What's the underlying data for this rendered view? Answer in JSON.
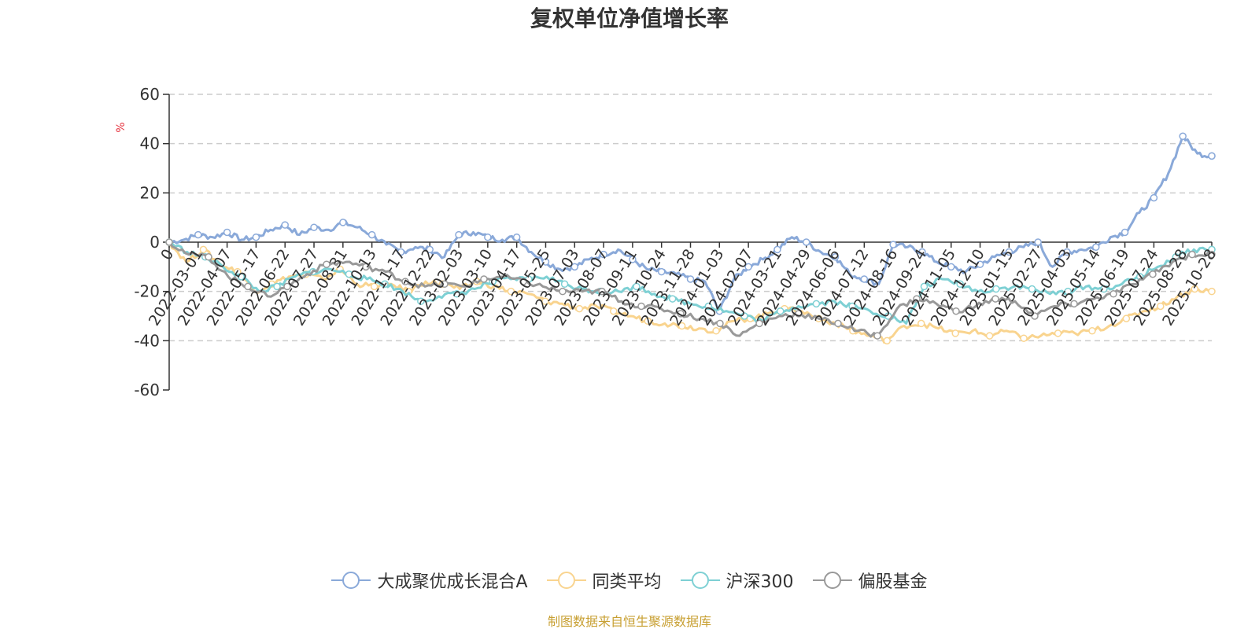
{
  "chart_data": {
    "type": "line",
    "title": "复权单位净值增长率",
    "ylabel": "%",
    "xlabel": "",
    "ylim": [
      -60,
      60
    ],
    "yticks": [
      60,
      40,
      20,
      0,
      -20,
      -40,
      -60
    ],
    "grid": true,
    "legend_position": "bottom-center",
    "x_tick_labels": [
      "0",
      "2022-03-01",
      "2022-04-07",
      "2022-05-17",
      "2022-06-22",
      "2022-07-27",
      "2022-08-31",
      "2022-10-13",
      "2022-11-17",
      "2022-12-22",
      "2023-02-03",
      "2023-03-10",
      "2023-04-17",
      "2023-05-25",
      "2023-07-03",
      "2023-08-07",
      "2023-09-11",
      "2023-10-24",
      "2023-11-28",
      "2024-01-03",
      "2024-02-07",
      "2024-03-21",
      "2024-04-29",
      "2024-06-06",
      "2024-07-12",
      "2024-08-16",
      "2024-09-24",
      "2024-11-05",
      "2024-12-10",
      "2025-01-15",
      "2025-02-27",
      "2025-04-03",
      "2025-05-14",
      "2025-06-19",
      "2025-07-24",
      "2025-08-28",
      "2025-10-28"
    ],
    "series": [
      {
        "name": "大成聚优成长混合A",
        "color": "#8aa9d9",
        "values": [
          0,
          1,
          3,
          2,
          4,
          1,
          2,
          5,
          7,
          3,
          6,
          5,
          8,
          6,
          3,
          -1,
          -4,
          -2,
          -3,
          -6,
          3,
          4,
          2,
          1,
          2,
          -4,
          -8,
          -11,
          -10,
          -7,
          -5,
          -3,
          -7,
          -11,
          -12,
          -13,
          -15,
          -16,
          -28,
          -15,
          -10,
          -7,
          -3,
          2,
          0,
          -4,
          -6,
          -13,
          -15,
          -17,
          -1,
          -2,
          -4,
          -8,
          -10,
          -12,
          -9,
          -6,
          -4,
          -2,
          0,
          -10,
          -4,
          -3,
          -2,
          2,
          4,
          12,
          18,
          28,
          43,
          36,
          35
        ]
      },
      {
        "name": "同类平均",
        "color": "#f9d48f",
        "values": [
          0,
          -8,
          -3,
          -9,
          -12,
          -20,
          -17,
          -14,
          -13,
          -15,
          -11,
          -17,
          -18,
          -17,
          -20,
          -16,
          -17,
          -19,
          -16,
          -18,
          -20,
          -21,
          -24,
          -25,
          -27,
          -26,
          -28,
          -30,
          -32,
          -33,
          -34,
          -35,
          -36,
          -32,
          -31,
          -29,
          -27,
          -28,
          -31,
          -33,
          -36,
          -38,
          -40,
          -34,
          -33,
          -35,
          -37,
          -36,
          -38,
          -36,
          -39,
          -38,
          -37,
          -37,
          -36,
          -34,
          -31,
          -28,
          -26,
          -22,
          -19,
          -20
        ]
      },
      {
        "name": "沪深300",
        "color": "#7ed0d4",
        "values": [
          0,
          -4,
          -6,
          -10,
          -14,
          -20,
          -18,
          -14,
          -12,
          -11,
          -13,
          -15,
          -17,
          -20,
          -24,
          -22,
          -21,
          -19,
          -16,
          -15,
          -15,
          -14,
          -17,
          -19,
          -20,
          -20,
          -18,
          -21,
          -23,
          -25,
          -26,
          -28,
          -30,
          -32,
          -28,
          -26,
          -25,
          -24,
          -26,
          -28,
          -30,
          -33,
          -18,
          -15,
          -17,
          -20,
          -19,
          -18,
          -19,
          -21,
          -20,
          -18,
          -19,
          -17,
          -14,
          -10,
          -6,
          -3,
          -3
        ]
      },
      {
        "name": "偏股基金",
        "color": "#999999",
        "values": [
          0,
          -5,
          -6,
          -14,
          -18,
          -22,
          -18,
          -13,
          -9,
          -8,
          -10,
          -12,
          -16,
          -18,
          -17,
          -18,
          -15,
          -14,
          -16,
          -18,
          -20,
          -20,
          -20,
          -24,
          -26,
          -27,
          -29,
          -31,
          -33,
          -38,
          -33,
          -30,
          -29,
          -31,
          -33,
          -36,
          -38,
          -27,
          -23,
          -25,
          -28,
          -26,
          -23,
          -24,
          -30,
          -26,
          -25,
          -23,
          -21,
          -17,
          -13,
          -8,
          -5,
          -5
        ]
      }
    ]
  },
  "source_note": "制图数据来自恒生聚源数据库"
}
